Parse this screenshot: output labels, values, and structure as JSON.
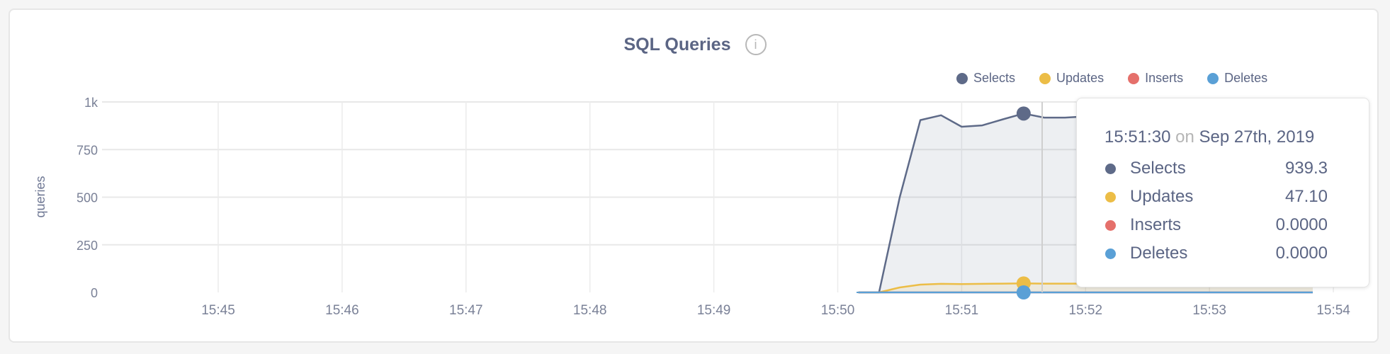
{
  "colors": {
    "Selects": "#5e6a88",
    "Updates": "#ecbd46",
    "Inserts": "#e5706b",
    "Deletes": "#5aa0d6",
    "text": "#5b6584"
  },
  "header": {
    "title": "SQL Queries",
    "info_icon": "info-circle-icon",
    "info_glyph": "i"
  },
  "legend": [
    {
      "label": "Selects",
      "color": "#5e6a88"
    },
    {
      "label": "Updates",
      "color": "#ecbd46"
    },
    {
      "label": "Inserts",
      "color": "#e5706b"
    },
    {
      "label": "Deletes",
      "color": "#5aa0d6"
    }
  ],
  "tooltip": {
    "time": "15:51:30",
    "on": "on",
    "date": "Sep 27th, 2019",
    "rows": [
      {
        "label": "Selects",
        "value": "939.3",
        "color": "#5e6a88"
      },
      {
        "label": "Updates",
        "value": "47.10",
        "color": "#ecbd46"
      },
      {
        "label": "Inserts",
        "value": "0.0000",
        "color": "#e5706b"
      },
      {
        "label": "Deletes",
        "value": "0.0000",
        "color": "#5aa0d6"
      }
    ]
  },
  "chart_data": {
    "type": "area",
    "ylabel": "queries",
    "ylim": [
      0,
      1000
    ],
    "yticks": [
      {
        "v": 0,
        "label": "0"
      },
      {
        "v": 250,
        "label": "250"
      },
      {
        "v": 500,
        "label": "500"
      },
      {
        "v": 750,
        "label": "750"
      },
      {
        "v": 1000,
        "label": "1k"
      }
    ],
    "xticks": [
      "15:45",
      "15:46",
      "15:47",
      "15:48",
      "15:49",
      "15:50",
      "15:51",
      "15:52",
      "15:53",
      "15:54"
    ],
    "xlim": [
      "15:43:46",
      "15:54:00"
    ],
    "grid": true,
    "legend_position": "top-right",
    "x": [
      "15:50:10",
      "15:50:20",
      "15:50:30",
      "15:50:40",
      "15:50:50",
      "15:51:00",
      "15:51:10",
      "15:51:20",
      "15:51:30",
      "15:51:40",
      "15:51:50",
      "15:52:00",
      "15:52:10",
      "15:52:20",
      "15:52:30",
      "15:52:40",
      "15:52:50",
      "15:53:00",
      "15:53:10",
      "15:53:20",
      "15:53:30",
      "15:53:40",
      "15:53:50"
    ],
    "series": [
      {
        "name": "Selects",
        "values": [
          0,
          0,
          500,
          905,
          930,
          870,
          877,
          909,
          939.3,
          918,
          918,
          924,
          925,
          925,
          925,
          925,
          925,
          925,
          925,
          925,
          925,
          925,
          925
        ]
      },
      {
        "name": "Updates",
        "values": [
          0,
          0,
          26,
          41,
          45,
          44,
          45,
          46,
          47.1,
          46,
          46,
          46,
          46,
          46,
          46,
          46,
          46,
          46,
          46,
          46,
          46,
          46,
          46
        ]
      },
      {
        "name": "Inserts",
        "values": [
          0,
          0,
          0,
          0,
          0,
          0,
          0,
          0,
          0,
          0,
          0,
          0,
          0,
          0,
          0,
          0,
          0,
          0,
          0,
          0,
          0,
          0,
          0
        ]
      },
      {
        "name": "Deletes",
        "values": [
          0,
          0,
          0,
          0,
          0,
          0,
          0,
          0,
          0,
          0,
          0,
          0,
          0,
          0,
          0,
          0,
          0,
          0,
          0,
          0,
          0,
          0,
          0
        ]
      }
    ],
    "hover": {
      "x": "15:51:30"
    }
  }
}
